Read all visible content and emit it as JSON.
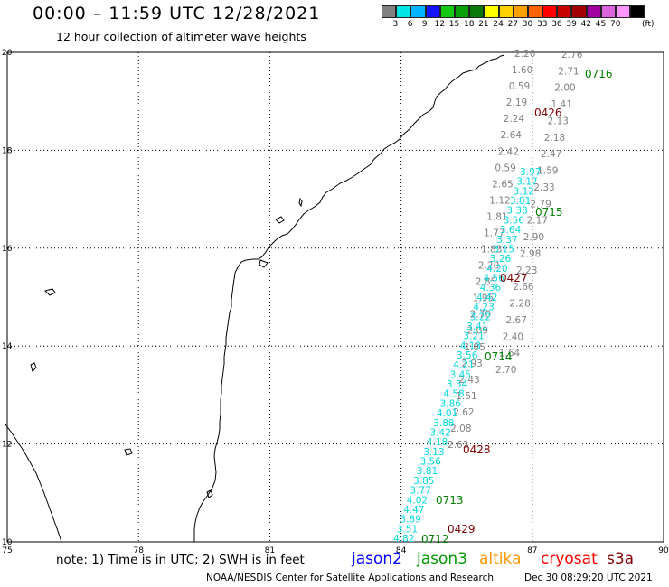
{
  "header": {
    "title": "00:00 – 11:59 UTC 12/28/2021",
    "subtitle": "12 hour collection of altimeter wave heights"
  },
  "colorbar": {
    "colors": [
      "#808080",
      "#00e6e6",
      "#00b4ff",
      "#1414ff",
      "#14c814",
      "#0aa00a",
      "#0a780a",
      "#ffff00",
      "#ffd200",
      "#ffa000",
      "#ff6400",
      "#ff0000",
      "#c80000",
      "#a00000",
      "#a000a0",
      "#dc64dc",
      "#ff96ff",
      "#000000"
    ],
    "labels": [
      "3",
      "6",
      "9",
      "12",
      "15",
      "18",
      "21",
      "24",
      "27",
      "30",
      "33",
      "36",
      "39",
      "42",
      "45",
      "70",
      "(ft)"
    ]
  },
  "map": {
    "lon_range": [
      75,
      90
    ],
    "lat_range": [
      10,
      20
    ],
    "lon_ticks": [
      "75",
      "78",
      "81",
      "84",
      "87",
      "90"
    ],
    "lat_ticks": [
      "20",
      "18",
      "16",
      "14",
      "12",
      "10"
    ],
    "coastline_color": "#000000",
    "grid": "dotted"
  },
  "observations": [
    {
      "id": "west-track",
      "color": "#808080",
      "values": [
        "2.20",
        "1.60",
        "0.59",
        "2.19",
        "2.24",
        "2.64",
        "2.42",
        "0.59",
        "2.65",
        "1.12",
        "1.81",
        "1.77",
        "1.83",
        "2.20",
        "2.85",
        "1.95",
        "2.70",
        "2.09",
        "1.85",
        "2.93",
        "2.43",
        "1.51",
        "2.62",
        "2.08",
        "2.63"
      ]
    },
    {
      "id": "east-track",
      "color": "#808080",
      "values": [
        "2.76",
        "2.71",
        "2.00",
        "1.41",
        "2.13",
        "2.18",
        "2.47",
        "1.59",
        "2.33",
        "2.79",
        "2.17",
        "2.90",
        "2.98",
        "2.23",
        "2.66",
        "2.28",
        "2.67",
        "2.40",
        "1.64",
        "2.70"
      ]
    },
    {
      "id": "cyan-values",
      "color": "#00d8e0",
      "values": [
        "3.97",
        "3.17",
        "3.12",
        "3.81",
        "3.38",
        "3.56",
        "3.64",
        "3.37",
        "3.15",
        "3.26",
        "4.20",
        "4.56",
        "4.36",
        "4.42",
        "4.23",
        "3.22",
        "3.41",
        "3.21",
        "4.13",
        "3.56",
        "4.21",
        "3.45",
        "3.54",
        "4.58",
        "3.86",
        "4.01",
        "3.88",
        "3.42",
        "4.18",
        "3.13",
        "3.56",
        "3.81",
        "3.85",
        "3.77",
        "4.02",
        "4.47",
        "3.89",
        "3.51",
        "4.82"
      ]
    },
    {
      "id": "time-labels-green",
      "color": "#008000",
      "values": [
        "0716",
        "0715",
        "0714",
        "0713",
        "0712"
      ]
    },
    {
      "id": "time-labels-maroon",
      "color": "#800000",
      "values": [
        "0426",
        "0427",
        "0428",
        "0429"
      ]
    }
  ],
  "footer": {
    "note": "note: 1) Time is in UTC; 2) SWH is in feet",
    "satellites": [
      {
        "name": "jason2",
        "color": "#0000ff"
      },
      {
        "name": "jason3",
        "color": "#009900"
      },
      {
        "name": "altika",
        "color": "#ff9900"
      },
      {
        "name": "cryosat",
        "color": "#ff0000"
      },
      {
        "name": "s3a",
        "color": "#800000"
      }
    ],
    "credit": "NOAA/NESDIS Center for Satellite Applications and Research",
    "timestamp": "Dec 30 08:29:20 UTC 2021"
  }
}
